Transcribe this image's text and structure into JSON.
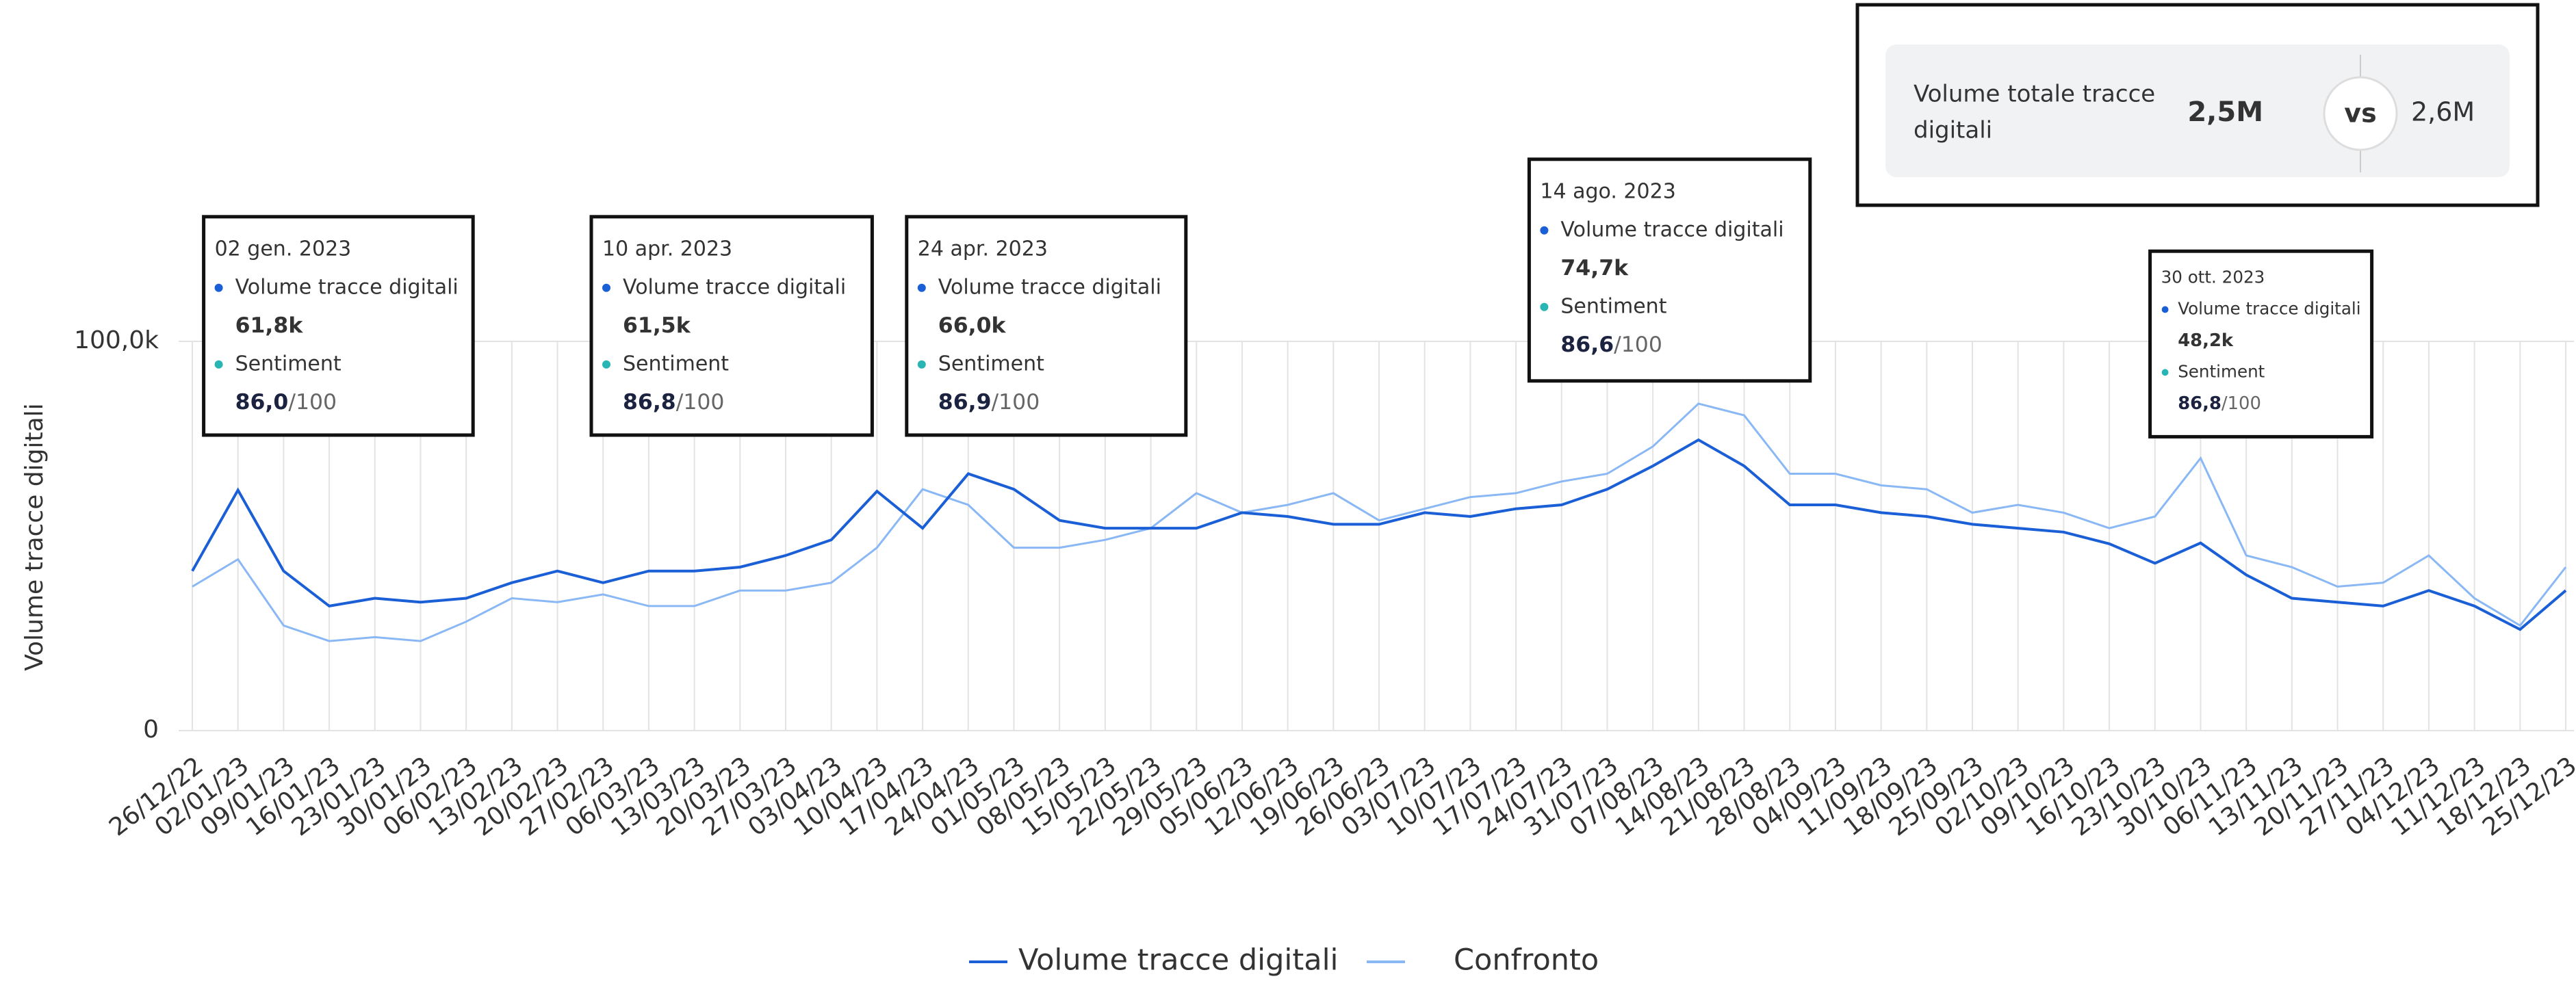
{
  "chart_data": {
    "type": "line",
    "y_label": "Volume tracce digitali",
    "categories": [
      "26/12/22",
      "02/01/23",
      "09/01/23",
      "16/01/23",
      "23/01/23",
      "30/01/23",
      "06/02/23",
      "13/02/23",
      "20/02/23",
      "27/02/23",
      "06/03/23",
      "13/03/23",
      "20/03/23",
      "27/03/23",
      "03/04/23",
      "10/04/23",
      "17/04/23",
      "24/04/23",
      "01/05/23",
      "08/05/23",
      "15/05/23",
      "22/05/23",
      "29/05/23",
      "05/06/23",
      "12/06/23",
      "19/06/23",
      "26/06/23",
      "03/07/23",
      "10/07/23",
      "17/07/23",
      "24/07/23",
      "31/07/23",
      "07/08/23",
      "14/08/23",
      "21/08/23",
      "28/08/23",
      "04/09/23",
      "11/09/23",
      "18/09/23",
      "25/09/23",
      "02/10/23",
      "09/10/23",
      "16/10/23",
      "23/10/23",
      "30/10/23",
      "06/11/23",
      "13/11/23",
      "20/11/23",
      "27/11/23",
      "04/12/23",
      "11/12/23",
      "18/12/23",
      "25/12/23"
    ],
    "series": [
      {
        "name": "Volume tracce digitali",
        "color": "#1a5fd6",
        "values": [
          41000,
          61800,
          41000,
          32000,
          34000,
          33000,
          34000,
          38000,
          41000,
          38000,
          41000,
          41000,
          42000,
          45000,
          49000,
          61500,
          52000,
          66000,
          62000,
          54000,
          52000,
          52000,
          52000,
          56000,
          55000,
          53000,
          53000,
          56000,
          55000,
          57000,
          58000,
          62000,
          68000,
          74700,
          68000,
          58000,
          58000,
          56000,
          55000,
          53000,
          52000,
          51000,
          48000,
          43000,
          48200,
          40000,
          34000,
          33000,
          32000,
          36000,
          32000,
          26000,
          36000
        ]
      },
      {
        "name": "Confronto",
        "color": "#8ab8f5",
        "values": [
          37000,
          44000,
          27000,
          23000,
          24000,
          23000,
          28000,
          34000,
          33000,
          35000,
          32000,
          32000,
          36000,
          36000,
          38000,
          47000,
          62000,
          58000,
          47000,
          47000,
          49000,
          52000,
          61000,
          56000,
          58000,
          61000,
          54000,
          57000,
          60000,
          61000,
          64000,
          66000,
          73000,
          84000,
          81000,
          66000,
          66000,
          63000,
          62000,
          56000,
          58000,
          56000,
          52000,
          55000,
          70000,
          45000,
          42000,
          37000,
          38000,
          45000,
          34000,
          27000,
          42000
        ]
      }
    ],
    "ylim": [
      0,
      100000
    ],
    "yticks": [
      0,
      {
        "value": 100000,
        "label": "100,0k"
      }
    ],
    "grid": true,
    "legend": "bottom",
    "tooltips": [
      {
        "date": "02 gen. 2023",
        "series": "Volume tracce digitali",
        "value_label": "61,8k",
        "sentiment_name": "Sentiment",
        "sentiment": {
          "value": 86,
          "label": "86,0"
        },
        "scale": "/100"
      },
      {
        "date": "10 apr. 2023",
        "series": "Volume tracce digitali",
        "value_label": "61,5k",
        "sentiment_name": "Sentiment",
        "sentiment": {
          "value": 86.8,
          "label": "86,8"
        },
        "scale": "/100"
      },
      {
        "date": "24 apr. 2023",
        "series": "Volume tracce digitali",
        "value_label": "66,0k",
        "sentiment_name": "Sentiment",
        "sentiment": {
          "value": 86.9,
          "label": "86,9"
        },
        "scale": "/100"
      },
      {
        "date": "14 ago. 2023",
        "series": "Volume tracce digitali",
        "value_label": "74,7k",
        "sentiment_name": "Sentiment",
        "sentiment": {
          "value": 86.6,
          "label": "86,6"
        },
        "scale": "/100"
      },
      {
        "date": "30 ott. 2023",
        "series": "Volume tracce digitali",
        "value_label": "48,2k",
        "sentiment_name": "Sentiment",
        "sentiment": {
          "value": 86.8,
          "label": "86,8"
        },
        "scale": "/100"
      }
    ],
    "summary": {
      "label_line1": "Volume totale tracce",
      "label_line2": "digitali",
      "value": "2,5M",
      "vs": "vs",
      "compare": "2,6M"
    }
  }
}
